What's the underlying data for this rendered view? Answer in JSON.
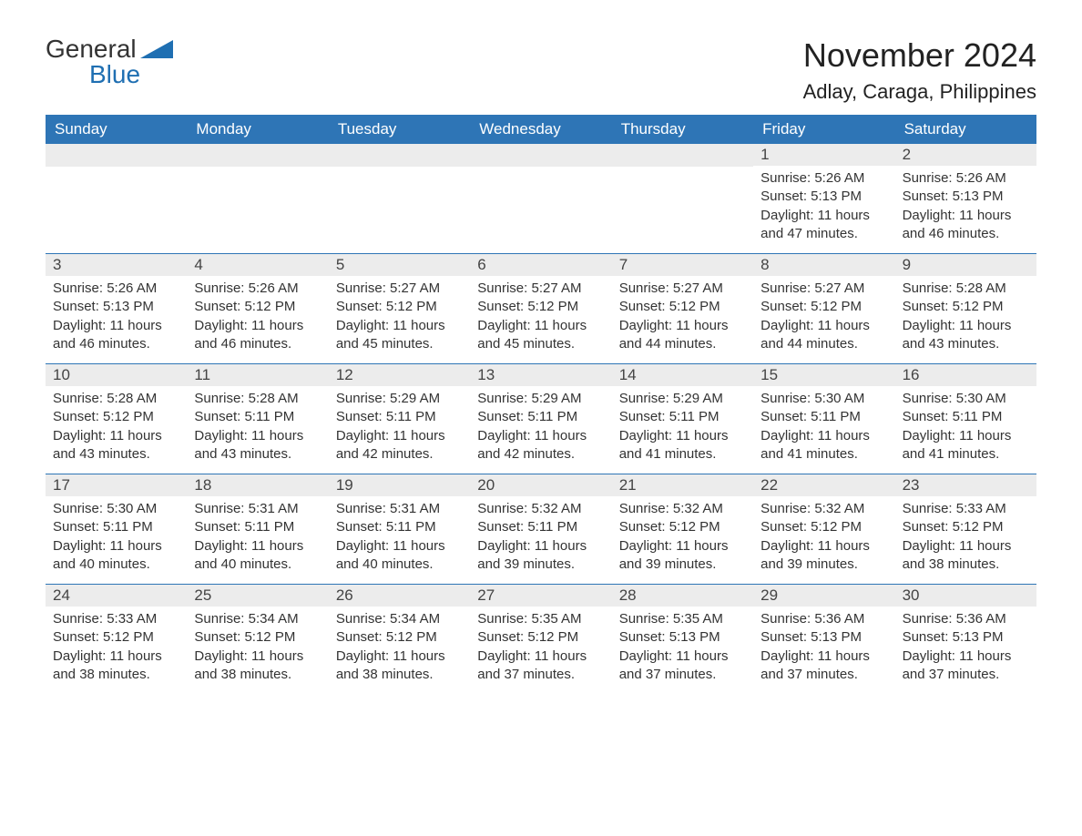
{
  "logo": {
    "general": "General",
    "blue": "Blue",
    "accent_color": "#1f6fb2"
  },
  "title": "November 2024",
  "location": "Adlay, Caraga, Philippines",
  "colors": {
    "header_bg": "#2e75b6",
    "header_text": "#ffffff",
    "daynum_bg": "#ececec",
    "text": "#333333",
    "row_border": "#2e75b6"
  },
  "fonts": {
    "title_size": 36,
    "location_size": 22,
    "dow_size": 17,
    "body_size": 15
  },
  "days_of_week": [
    "Sunday",
    "Monday",
    "Tuesday",
    "Wednesday",
    "Thursday",
    "Friday",
    "Saturday"
  ],
  "weeks": [
    [
      {
        "n": "",
        "sunrise": "",
        "sunset": "",
        "daylight": ""
      },
      {
        "n": "",
        "sunrise": "",
        "sunset": "",
        "daylight": ""
      },
      {
        "n": "",
        "sunrise": "",
        "sunset": "",
        "daylight": ""
      },
      {
        "n": "",
        "sunrise": "",
        "sunset": "",
        "daylight": ""
      },
      {
        "n": "",
        "sunrise": "",
        "sunset": "",
        "daylight": ""
      },
      {
        "n": "1",
        "sunrise": "Sunrise: 5:26 AM",
        "sunset": "Sunset: 5:13 PM",
        "daylight": "Daylight: 11 hours and 47 minutes."
      },
      {
        "n": "2",
        "sunrise": "Sunrise: 5:26 AM",
        "sunset": "Sunset: 5:13 PM",
        "daylight": "Daylight: 11 hours and 46 minutes."
      }
    ],
    [
      {
        "n": "3",
        "sunrise": "Sunrise: 5:26 AM",
        "sunset": "Sunset: 5:13 PM",
        "daylight": "Daylight: 11 hours and 46 minutes."
      },
      {
        "n": "4",
        "sunrise": "Sunrise: 5:26 AM",
        "sunset": "Sunset: 5:12 PM",
        "daylight": "Daylight: 11 hours and 46 minutes."
      },
      {
        "n": "5",
        "sunrise": "Sunrise: 5:27 AM",
        "sunset": "Sunset: 5:12 PM",
        "daylight": "Daylight: 11 hours and 45 minutes."
      },
      {
        "n": "6",
        "sunrise": "Sunrise: 5:27 AM",
        "sunset": "Sunset: 5:12 PM",
        "daylight": "Daylight: 11 hours and 45 minutes."
      },
      {
        "n": "7",
        "sunrise": "Sunrise: 5:27 AM",
        "sunset": "Sunset: 5:12 PM",
        "daylight": "Daylight: 11 hours and 44 minutes."
      },
      {
        "n": "8",
        "sunrise": "Sunrise: 5:27 AM",
        "sunset": "Sunset: 5:12 PM",
        "daylight": "Daylight: 11 hours and 44 minutes."
      },
      {
        "n": "9",
        "sunrise": "Sunrise: 5:28 AM",
        "sunset": "Sunset: 5:12 PM",
        "daylight": "Daylight: 11 hours and 43 minutes."
      }
    ],
    [
      {
        "n": "10",
        "sunrise": "Sunrise: 5:28 AM",
        "sunset": "Sunset: 5:12 PM",
        "daylight": "Daylight: 11 hours and 43 minutes."
      },
      {
        "n": "11",
        "sunrise": "Sunrise: 5:28 AM",
        "sunset": "Sunset: 5:11 PM",
        "daylight": "Daylight: 11 hours and 43 minutes."
      },
      {
        "n": "12",
        "sunrise": "Sunrise: 5:29 AM",
        "sunset": "Sunset: 5:11 PM",
        "daylight": "Daylight: 11 hours and 42 minutes."
      },
      {
        "n": "13",
        "sunrise": "Sunrise: 5:29 AM",
        "sunset": "Sunset: 5:11 PM",
        "daylight": "Daylight: 11 hours and 42 minutes."
      },
      {
        "n": "14",
        "sunrise": "Sunrise: 5:29 AM",
        "sunset": "Sunset: 5:11 PM",
        "daylight": "Daylight: 11 hours and 41 minutes."
      },
      {
        "n": "15",
        "sunrise": "Sunrise: 5:30 AM",
        "sunset": "Sunset: 5:11 PM",
        "daylight": "Daylight: 11 hours and 41 minutes."
      },
      {
        "n": "16",
        "sunrise": "Sunrise: 5:30 AM",
        "sunset": "Sunset: 5:11 PM",
        "daylight": "Daylight: 11 hours and 41 minutes."
      }
    ],
    [
      {
        "n": "17",
        "sunrise": "Sunrise: 5:30 AM",
        "sunset": "Sunset: 5:11 PM",
        "daylight": "Daylight: 11 hours and 40 minutes."
      },
      {
        "n": "18",
        "sunrise": "Sunrise: 5:31 AM",
        "sunset": "Sunset: 5:11 PM",
        "daylight": "Daylight: 11 hours and 40 minutes."
      },
      {
        "n": "19",
        "sunrise": "Sunrise: 5:31 AM",
        "sunset": "Sunset: 5:11 PM",
        "daylight": "Daylight: 11 hours and 40 minutes."
      },
      {
        "n": "20",
        "sunrise": "Sunrise: 5:32 AM",
        "sunset": "Sunset: 5:11 PM",
        "daylight": "Daylight: 11 hours and 39 minutes."
      },
      {
        "n": "21",
        "sunrise": "Sunrise: 5:32 AM",
        "sunset": "Sunset: 5:12 PM",
        "daylight": "Daylight: 11 hours and 39 minutes."
      },
      {
        "n": "22",
        "sunrise": "Sunrise: 5:32 AM",
        "sunset": "Sunset: 5:12 PM",
        "daylight": "Daylight: 11 hours and 39 minutes."
      },
      {
        "n": "23",
        "sunrise": "Sunrise: 5:33 AM",
        "sunset": "Sunset: 5:12 PM",
        "daylight": "Daylight: 11 hours and 38 minutes."
      }
    ],
    [
      {
        "n": "24",
        "sunrise": "Sunrise: 5:33 AM",
        "sunset": "Sunset: 5:12 PM",
        "daylight": "Daylight: 11 hours and 38 minutes."
      },
      {
        "n": "25",
        "sunrise": "Sunrise: 5:34 AM",
        "sunset": "Sunset: 5:12 PM",
        "daylight": "Daylight: 11 hours and 38 minutes."
      },
      {
        "n": "26",
        "sunrise": "Sunrise: 5:34 AM",
        "sunset": "Sunset: 5:12 PM",
        "daylight": "Daylight: 11 hours and 38 minutes."
      },
      {
        "n": "27",
        "sunrise": "Sunrise: 5:35 AM",
        "sunset": "Sunset: 5:12 PM",
        "daylight": "Daylight: 11 hours and 37 minutes."
      },
      {
        "n": "28",
        "sunrise": "Sunrise: 5:35 AM",
        "sunset": "Sunset: 5:13 PM",
        "daylight": "Daylight: 11 hours and 37 minutes."
      },
      {
        "n": "29",
        "sunrise": "Sunrise: 5:36 AM",
        "sunset": "Sunset: 5:13 PM",
        "daylight": "Daylight: 11 hours and 37 minutes."
      },
      {
        "n": "30",
        "sunrise": "Sunrise: 5:36 AM",
        "sunset": "Sunset: 5:13 PM",
        "daylight": "Daylight: 11 hours and 37 minutes."
      }
    ]
  ]
}
